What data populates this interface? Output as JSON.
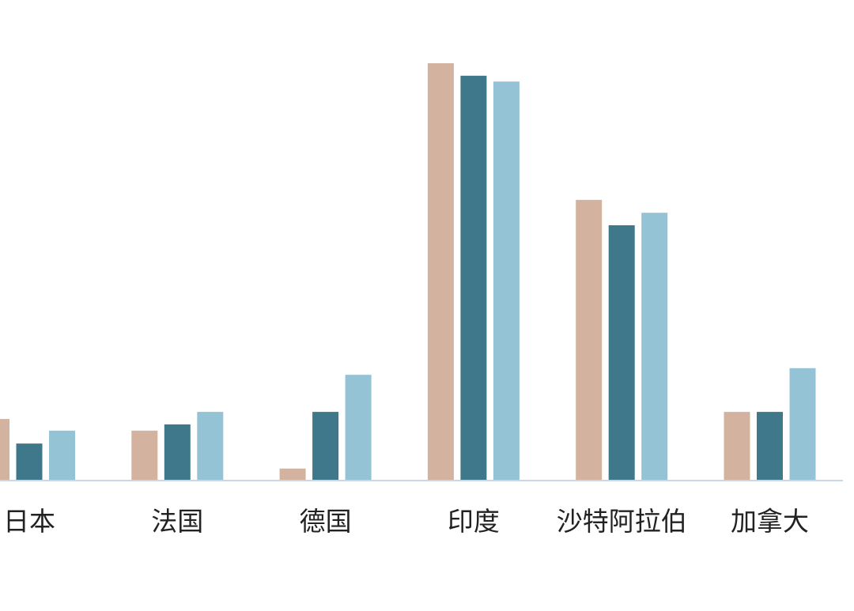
{
  "chart_data": {
    "type": "bar",
    "categories": [
      "日本",
      "法国",
      "德国",
      "印度",
      "沙特阿拉伯",
      "加拿大"
    ],
    "series": [
      {
        "values": [
          14.6,
          11.8,
          2.7,
          100,
          67.2,
          16.3
        ],
        "color": "#d3b3a0"
      },
      {
        "values": [
          8.7,
          13.3,
          16.3,
          97,
          61.1,
          16.3
        ],
        "color": "#3e788a"
      },
      {
        "values": [
          11.8,
          16.3,
          25.2,
          95.6,
          64.1,
          26.8
        ],
        "color": "#94c3d5"
      }
    ],
    "ylim": [
      0,
      100
    ],
    "grid": false,
    "legend": "none",
    "axis_color": "#c9d6e3"
  }
}
